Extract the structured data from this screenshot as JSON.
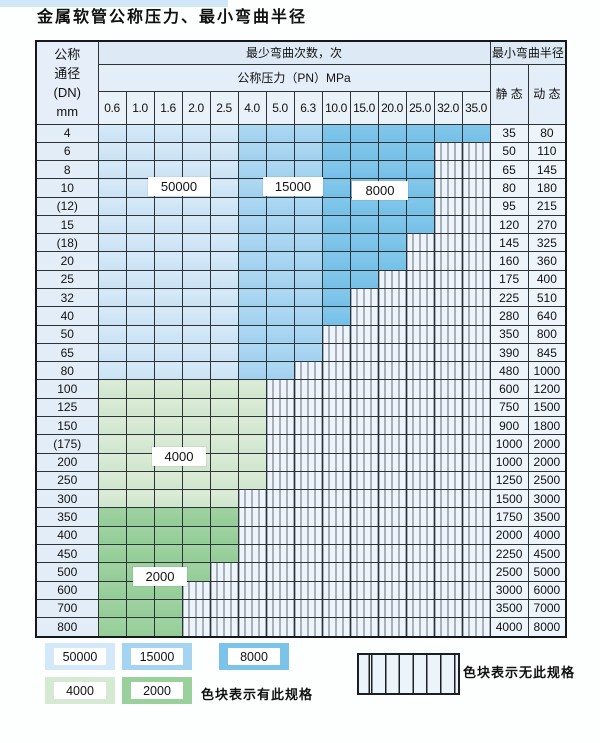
{
  "title": "金属软管公称压力、最小弯曲半径",
  "table": {
    "header": {
      "dn_lines": [
        "公称",
        "通径",
        "(DN)",
        "mm"
      ],
      "cycles_label": "最少弯曲次数，次",
      "pn_label": "公称压力（PN）MPa",
      "radius_label": "最小弯曲半径",
      "static_label": "静 态",
      "dynamic_label": "动 态",
      "pressures": [
        "0.6",
        "1.0",
        "1.6",
        "2.0",
        "2.5",
        "4.0",
        "5.0",
        "6.3",
        "10.0",
        "15.0",
        "20.0",
        "25.0",
        "32.0",
        "35.0"
      ]
    },
    "cycle_zones": {
      "blue_cols_0.6-2.5": "50000",
      "blue_cols_4.0-6.3": "15000",
      "blue_cols_10.0-35.0": "8000",
      "green_rows_100-300": "4000",
      "green_rows_350-800": "2000"
    },
    "rows": [
      {
        "dn": "4",
        "static": "35",
        "dynamic": "80",
        "last": 13,
        "band": "b"
      },
      {
        "dn": "6",
        "static": "50",
        "dynamic": "110",
        "last": 11,
        "band": "b"
      },
      {
        "dn": "8",
        "static": "65",
        "dynamic": "145",
        "last": 11,
        "band": "b"
      },
      {
        "dn": "10",
        "static": "80",
        "dynamic": "180",
        "last": 11,
        "band": "b"
      },
      {
        "dn": "(12)",
        "static": "95",
        "dynamic": "215",
        "last": 11,
        "band": "b"
      },
      {
        "dn": "15",
        "static": "120",
        "dynamic": "270",
        "last": 11,
        "band": "b"
      },
      {
        "dn": "(18)",
        "static": "145",
        "dynamic": "325",
        "last": 10,
        "band": "b"
      },
      {
        "dn": "20",
        "static": "160",
        "dynamic": "360",
        "last": 10,
        "band": "b"
      },
      {
        "dn": "25",
        "static": "175",
        "dynamic": "400",
        "last": 9,
        "band": "b"
      },
      {
        "dn": "32",
        "static": "225",
        "dynamic": "510",
        "last": 8,
        "band": "b"
      },
      {
        "dn": "40",
        "static": "280",
        "dynamic": "640",
        "last": 8,
        "band": "b"
      },
      {
        "dn": "50",
        "static": "350",
        "dynamic": "800",
        "last": 7,
        "band": "b"
      },
      {
        "dn": "65",
        "static": "390",
        "dynamic": "845",
        "last": 7,
        "band": "b"
      },
      {
        "dn": "80",
        "static": "480",
        "dynamic": "1000",
        "last": 6,
        "band": "b"
      },
      {
        "dn": "100",
        "static": "600",
        "dynamic": "1200",
        "last": 5,
        "band": "g4"
      },
      {
        "dn": "125",
        "static": "750",
        "dynamic": "1500",
        "last": 5,
        "band": "g4"
      },
      {
        "dn": "150",
        "static": "900",
        "dynamic": "1800",
        "last": 5,
        "band": "g4"
      },
      {
        "dn": "(175)",
        "static": "1000",
        "dynamic": "2000",
        "last": 5,
        "band": "g4"
      },
      {
        "dn": "200",
        "static": "1000",
        "dynamic": "2000",
        "last": 5,
        "band": "g4"
      },
      {
        "dn": "250",
        "static": "1250",
        "dynamic": "2500",
        "last": 5,
        "band": "g4"
      },
      {
        "dn": "300",
        "static": "1500",
        "dynamic": "3000",
        "last": 4,
        "band": "g4"
      },
      {
        "dn": "350",
        "static": "1750",
        "dynamic": "3500",
        "last": 4,
        "band": "g2"
      },
      {
        "dn": "400",
        "static": "2000",
        "dynamic": "4000",
        "last": 4,
        "band": "g2"
      },
      {
        "dn": "450",
        "static": "2250",
        "dynamic": "4500",
        "last": 4,
        "band": "g2"
      },
      {
        "dn": "500",
        "static": "2500",
        "dynamic": "5000",
        "last": 3,
        "band": "g2"
      },
      {
        "dn": "600",
        "static": "3000",
        "dynamic": "6000",
        "last": 2,
        "band": "g2"
      },
      {
        "dn": "700",
        "static": "3500",
        "dynamic": "7000",
        "last": 2,
        "band": "g2"
      },
      {
        "dn": "800",
        "static": "4000",
        "dynamic": "8000",
        "last": 2,
        "band": "g2"
      }
    ]
  },
  "overlay_labels": {
    "l50000": "50000",
    "l15000": "15000",
    "l8000": "8000",
    "l4000": "4000",
    "l2000": "2000"
  },
  "legend": {
    "s50000": "50000",
    "s15000": "15000",
    "s8000": "8000",
    "s4000": "4000",
    "s2000": "2000",
    "has_spec_text": "色块表示有此规格",
    "no_spec_text": "色块表示无此规格"
  },
  "colors": {
    "cycles_50000": "#cfe5f6",
    "cycles_15000": "#a5d4f1",
    "cycles_8000": "#7cc3e9",
    "cycles_4000": "#d6e9d3",
    "cycles_2000": "#9ad09c",
    "no_spec_fill": "#edf4fb"
  }
}
